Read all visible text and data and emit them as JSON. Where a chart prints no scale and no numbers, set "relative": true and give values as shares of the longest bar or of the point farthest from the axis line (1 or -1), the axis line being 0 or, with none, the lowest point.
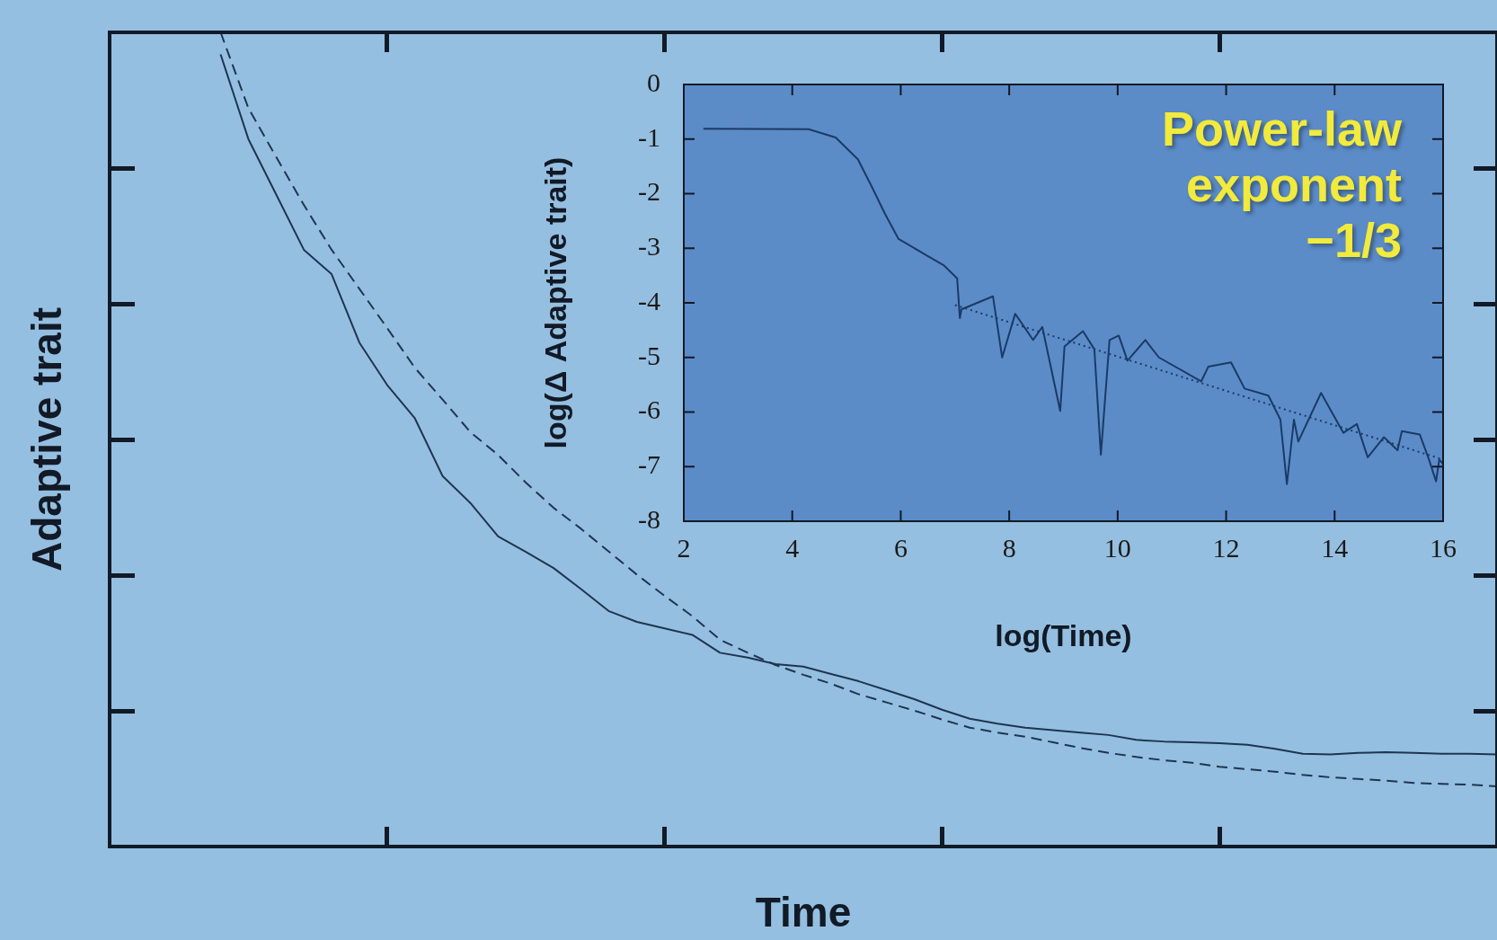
{
  "chart_data": [
    {
      "type": "line",
      "xlabel": "Time",
      "ylabel": "Adaptive trait",
      "relative": true,
      "tick_labels": false,
      "grid": false,
      "legend": false,
      "marker": "none",
      "categories": [
        null,
        null,
        null,
        null,
        null,
        null,
        null,
        null,
        null,
        null,
        null,
        null,
        null,
        null,
        null,
        null,
        null,
        null,
        null,
        null,
        null,
        null,
        null,
        null,
        null,
        null,
        null,
        null,
        null,
        null,
        null,
        null,
        null,
        null,
        null,
        null,
        null,
        null,
        null,
        null,
        null,
        null,
        null,
        null,
        null,
        null,
        null,
        null,
        null,
        null,
        null
      ],
      "series": [
        {
          "color": "#1e3550",
          "line_style": "solid",
          "values": [
            null,
            null,
            null,
            null,
            0.973,
            0.869,
            0.801,
            0.733,
            0.703,
            0.619,
            0.567,
            0.526,
            0.455,
            0.422,
            0.381,
            0.362,
            0.342,
            0.316,
            0.289,
            0.276,
            0.268,
            0.26,
            0.238,
            0.232,
            0.224,
            0.221,
            0.212,
            0.203,
            0.192,
            0.181,
            0.168,
            0.157,
            0.151,
            0.146,
            0.143,
            0.14,
            0.137,
            0.131,
            0.129,
            0.128,
            0.127,
            0.125,
            0.12,
            0.114,
            0.113,
            0.115,
            0.116,
            0.115,
            0.114,
            0.114,
            0.113
          ]
        },
        {
          "color": "#1e3550",
          "line_style": "dashed",
          "values": [
            null,
            null,
            null,
            null,
            1,
            0.907,
            0.847,
            0.788,
            0.733,
            0.685,
            0.637,
            0.588,
            0.549,
            0.509,
            0.481,
            0.447,
            0.416,
            0.39,
            0.362,
            0.334,
            0.308,
            0.283,
            0.254,
            0.238,
            0.223,
            0.211,
            0.2,
            0.187,
            0.177,
            0.167,
            0.156,
            0.146,
            0.14,
            0.135,
            0.128,
            0.121,
            0.115,
            0.11,
            0.106,
            0.103,
            0.098,
            0.095,
            0.092,
            0.088,
            0.085,
            0.083,
            0.081,
            0.078,
            0.077,
            0.076,
            0.074
          ]
        }
      ]
    },
    {
      "type": "line",
      "xlabel": "log(Time)",
      "ylabel": "log(Δ Adaptive trait)",
      "annotations": [
        "Power-law exponent −1/3"
      ],
      "grid": false,
      "legend": false,
      "marker": "none",
      "xlim": [
        2,
        16
      ],
      "xticks": [
        2,
        4,
        6,
        8,
        10,
        12,
        14,
        16
      ],
      "ylim": [
        -8,
        0
      ],
      "yticks": [
        -8,
        -7,
        -6,
        -5,
        -4,
        -3,
        -2,
        -1,
        0
      ],
      "series": [
        {
          "color": "#1b3a66",
          "line_style": "solid",
          "x": [
            2.36,
            4.3,
            4.8,
            5.21,
            5.46,
            5.71,
            5.96,
            6.46,
            6.79,
            7.04,
            7.09,
            7.12,
            7.7,
            7.87,
            8.11,
            8.44,
            8.61,
            8.94,
            9.02,
            9.36,
            9.57,
            9.69,
            9.85,
            10.02,
            10.18,
            10.51,
            10.76,
            11.54,
            11.67,
            12.09,
            12.34,
            12.78,
            13.0,
            13.12,
            13.25,
            13.33,
            13.75,
            14.16,
            14.41,
            14.61,
            14.91,
            15.16,
            15.24,
            15.57,
            15.74,
            15.87,
            15.93,
            16.0
          ],
          "values": [
            -0.81,
            -0.82,
            -0.97,
            -1.37,
            -1.86,
            -2.37,
            -2.83,
            -3.12,
            -3.31,
            -3.55,
            -4.28,
            -4.12,
            -3.88,
            -5.0,
            -4.2,
            -4.68,
            -4.44,
            -5.98,
            -4.8,
            -4.52,
            -4.85,
            -6.78,
            -4.68,
            -4.6,
            -5.06,
            -4.68,
            -5.0,
            -5.44,
            -5.17,
            -5.09,
            -5.57,
            -5.7,
            -6.14,
            -7.32,
            -6.14,
            -6.54,
            -5.65,
            -6.38,
            -6.22,
            -6.83,
            -6.46,
            -6.7,
            -6.35,
            -6.41,
            -6.87,
            -7.27,
            -6.87,
            -6.95
          ]
        },
        {
          "type": "line",
          "color": "#1b3a66",
          "line_style": "dotted",
          "x": [
            7.0,
            16.0
          ],
          "values": [
            -4.04,
            -6.87
          ]
        }
      ]
    }
  ]
}
